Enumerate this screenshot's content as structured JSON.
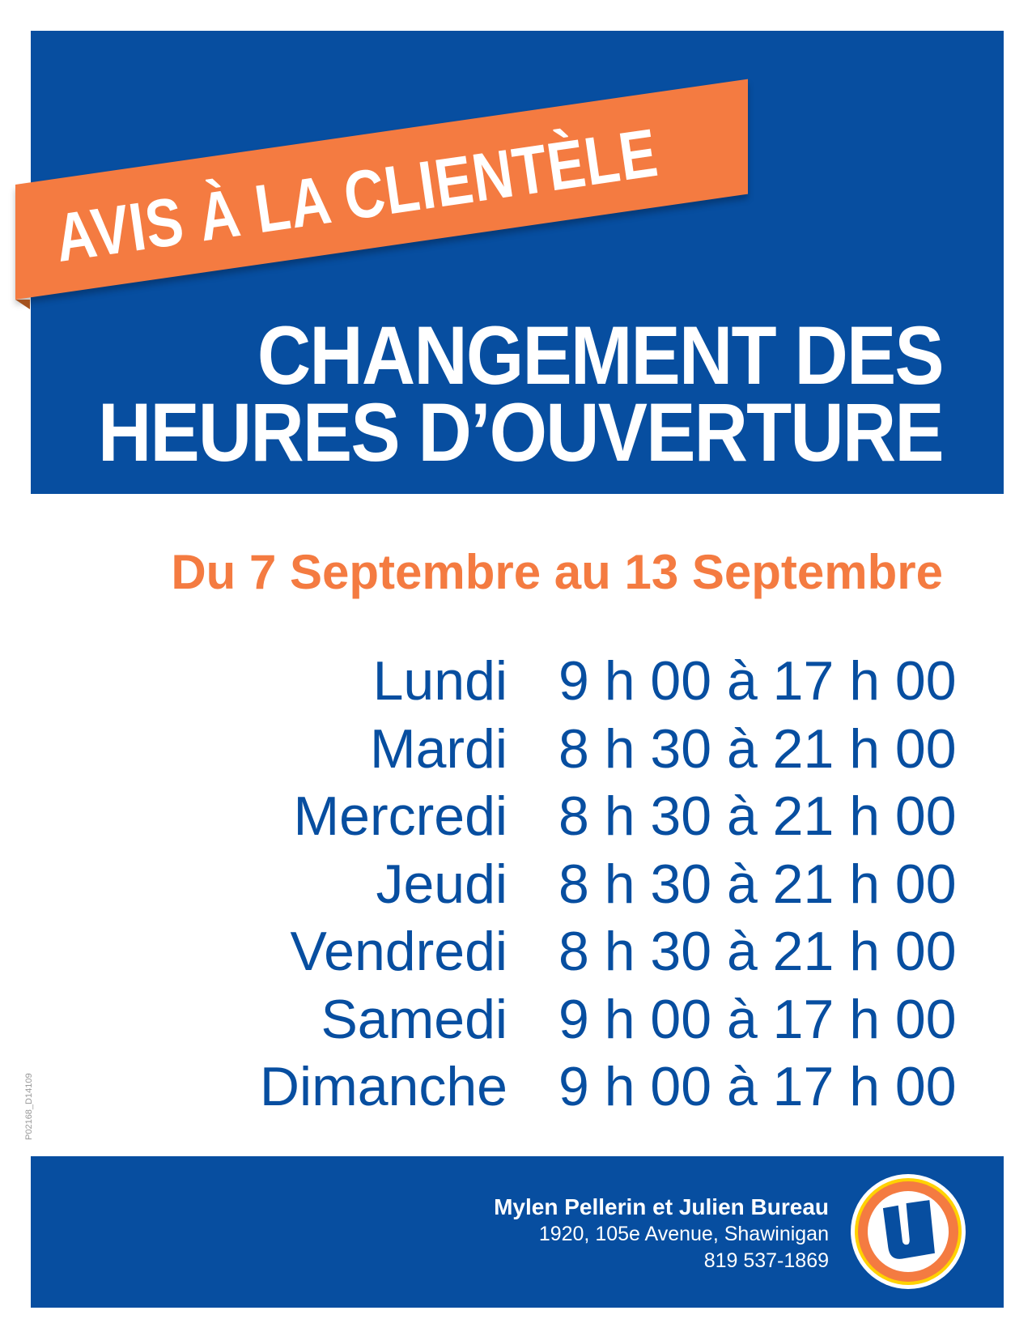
{
  "banner": {
    "text": "AVIS À LA CLIENTÈLE"
  },
  "title": {
    "line1": "CHANGEMENT DES",
    "line2": "HEURES D’OUVERTURE"
  },
  "date_range": "Du 7 Septembre au 13 Septembre",
  "schedule": [
    {
      "day": "Lundi",
      "hours": "9 h 00 à 17 h 00"
    },
    {
      "day": "Mardi",
      "hours": "8 h 30 à 21 h 00"
    },
    {
      "day": "Mercredi",
      "hours": "8 h 30 à 21 h 00"
    },
    {
      "day": "Jeudi",
      "hours": "8 h 30 à 21 h 00"
    },
    {
      "day": "Vendredi",
      "hours": "8 h 30 à 21 h 00"
    },
    {
      "day": "Samedi",
      "hours": "9 h 00 à 17 h 00"
    },
    {
      "day": "Dimanche",
      "hours": "9 h 00 à 17 h 00"
    }
  ],
  "doc_code": "P02168_D14109",
  "footer": {
    "owners": "Mylen Pellerin et Julien Bureau",
    "address": "1920, 105e Avenue, Shawinigan",
    "phone": "819 537-1869",
    "logo": "U"
  },
  "colors": {
    "blue": "#074ea0",
    "orange": "#f47b41",
    "yellow": "#ffd200"
  }
}
